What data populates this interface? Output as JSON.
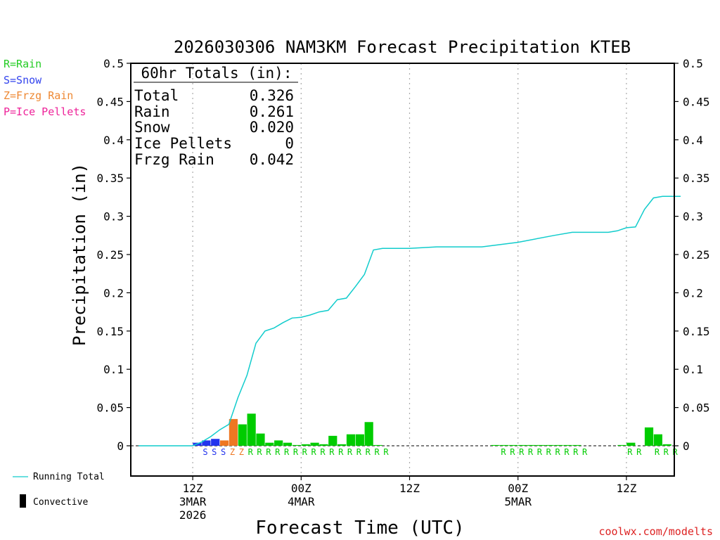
{
  "chart_data": {
    "type": "bar",
    "title": "2026030306 NAM3KM Forecast Precipitation KTEB",
    "xlabel": "Forecast Time (UTC)",
    "ylabel": "Precipitation (in)",
    "ylim": [
      -0.04,
      0.5
    ],
    "xlim": [
      0,
      60
    ],
    "y_ticks": [
      "0.5",
      "0.45",
      "0.4",
      "0.35",
      "0.3",
      "0.25",
      "0.2",
      "0.15",
      "0.1",
      "0.05",
      "0"
    ],
    "x_ticks": [
      {
        "hour": 6,
        "lines": [
          "12Z",
          "3MAR",
          "2026"
        ]
      },
      {
        "hour": 18,
        "lines": [
          "00Z",
          "4MAR"
        ]
      },
      {
        "hour": 30,
        "lines": [
          "12Z"
        ]
      },
      {
        "hour": 42,
        "lines": [
          "00Z",
          "5MAR"
        ]
      },
      {
        "hour": 54,
        "lines": [
          "12Z"
        ]
      }
    ],
    "type_legend": [
      {
        "label": "R=Rain",
        "color": "#22cc22"
      },
      {
        "label": "S=Snow",
        "color": "#3344ee"
      },
      {
        "label": "Z=Frzg Rain",
        "color": "#ee8833"
      },
      {
        "label": "P=Ice Pellets",
        "color": "#ee2299"
      }
    ],
    "totals_box": {
      "header": "60hr Totals (in):",
      "rows": [
        {
          "label": "Total",
          "value": "0.326"
        },
        {
          "label": "Rain",
          "value": "0.261"
        },
        {
          "label": "Snow",
          "value": "0.020"
        },
        {
          "label": "Ice Pellets",
          "value": "0"
        },
        {
          "label": "Frzg Rain",
          "value": "0.042"
        }
      ]
    },
    "series_legend": {
      "running_total": "Running Total",
      "convective": "Convective"
    },
    "colors": {
      "rain": "#00cc00",
      "snow": "#2233ee",
      "frzg": "#ee7722",
      "running": "#11cccc"
    },
    "bars": [
      {
        "h": 6.5,
        "v": 0.004,
        "type": "S"
      },
      {
        "h": 7.5,
        "v": 0.007,
        "type": "S"
      },
      {
        "h": 8.5,
        "v": 0.009,
        "type": "S"
      },
      {
        "h": 9.5,
        "v": 0.007,
        "type": "Z"
      },
      {
        "h": 10.5,
        "v": 0.035,
        "type": "Z"
      },
      {
        "h": 11.5,
        "v": 0.028,
        "type": "R"
      },
      {
        "h": 12.5,
        "v": 0.042,
        "type": "R"
      },
      {
        "h": 13.5,
        "v": 0.016,
        "type": "R"
      },
      {
        "h": 14.5,
        "v": 0.004,
        "type": "R"
      },
      {
        "h": 15.5,
        "v": 0.007,
        "type": "R"
      },
      {
        "h": 16.5,
        "v": 0.004,
        "type": "R"
      },
      {
        "h": 17.5,
        "v": 0.001,
        "type": "R"
      },
      {
        "h": 18.5,
        "v": 0.002,
        "type": "R"
      },
      {
        "h": 19.5,
        "v": 0.004,
        "type": "R"
      },
      {
        "h": 20.5,
        "v": 0.002,
        "type": "R"
      },
      {
        "h": 21.5,
        "v": 0.013,
        "type": "R"
      },
      {
        "h": 22.5,
        "v": 0.002,
        "type": "R"
      },
      {
        "h": 23.5,
        "v": 0.015,
        "type": "R"
      },
      {
        "h": 24.5,
        "v": 0.015,
        "type": "R"
      },
      {
        "h": 25.5,
        "v": 0.031,
        "type": "R"
      },
      {
        "h": 26.5,
        "v": 0.001,
        "type": "R"
      },
      {
        "h": 39.5,
        "v": 0.001,
        "type": "R"
      },
      {
        "h": 40.5,
        "v": 0.001,
        "type": "R"
      },
      {
        "h": 41.5,
        "v": 0.001,
        "type": "R"
      },
      {
        "h": 42.5,
        "v": 0.001,
        "type": "R"
      },
      {
        "h": 43.5,
        "v": 0.001,
        "type": "R"
      },
      {
        "h": 44.5,
        "v": 0.001,
        "type": "R"
      },
      {
        "h": 45.5,
        "v": 0.001,
        "type": "R"
      },
      {
        "h": 46.5,
        "v": 0.001,
        "type": "R"
      },
      {
        "h": 47.5,
        "v": 0.001,
        "type": "R"
      },
      {
        "h": 48.5,
        "v": 0.001,
        "type": "R"
      },
      {
        "h": 53.5,
        "v": 0.001,
        "type": "R"
      },
      {
        "h": 54.5,
        "v": 0.004,
        "type": "R"
      },
      {
        "h": 56.5,
        "v": 0.024,
        "type": "R"
      },
      {
        "h": 57.5,
        "v": 0.015,
        "type": "R"
      },
      {
        "h": 58.5,
        "v": 0.002,
        "type": "R"
      }
    ],
    "type_markers": [
      {
        "h": 7.0,
        "t": "S"
      },
      {
        "h": 8.0,
        "t": "S"
      },
      {
        "h": 9.0,
        "t": "S"
      },
      {
        "h": 10.0,
        "t": "Z"
      },
      {
        "h": 11.0,
        "t": "Z"
      },
      {
        "h": 12.0,
        "t": "R"
      },
      {
        "h": 13.0,
        "t": "R"
      },
      {
        "h": 14.0,
        "t": "R"
      },
      {
        "h": 15.0,
        "t": "R"
      },
      {
        "h": 16.0,
        "t": "R"
      },
      {
        "h": 17.0,
        "t": "R"
      },
      {
        "h": 18.0,
        "t": "R"
      },
      {
        "h": 19.0,
        "t": "R"
      },
      {
        "h": 20.0,
        "t": "R"
      },
      {
        "h": 21.0,
        "t": "R"
      },
      {
        "h": 22.0,
        "t": "R"
      },
      {
        "h": 23.0,
        "t": "R"
      },
      {
        "h": 24.0,
        "t": "R"
      },
      {
        "h": 25.0,
        "t": "R"
      },
      {
        "h": 26.0,
        "t": "R"
      },
      {
        "h": 27.0,
        "t": "R"
      },
      {
        "h": 40.0,
        "t": "R"
      },
      {
        "h": 41.0,
        "t": "R"
      },
      {
        "h": 42.0,
        "t": "R"
      },
      {
        "h": 43.0,
        "t": "R"
      },
      {
        "h": 44.0,
        "t": "R"
      },
      {
        "h": 45.0,
        "t": "R"
      },
      {
        "h": 46.0,
        "t": "R"
      },
      {
        "h": 47.0,
        "t": "R"
      },
      {
        "h": 48.0,
        "t": "R"
      },
      {
        "h": 49.0,
        "t": "R"
      },
      {
        "h": 54.0,
        "t": "R"
      },
      {
        "h": 55.0,
        "t": "R"
      },
      {
        "h": 57.0,
        "t": "R"
      },
      {
        "h": 58.0,
        "t": "R"
      },
      {
        "h": 59.0,
        "t": "R"
      }
    ],
    "running_total": [
      [
        0.0,
        0.0
      ],
      [
        6.0,
        0.0
      ],
      [
        7.0,
        0.005
      ],
      [
        8.0,
        0.012
      ],
      [
        9.0,
        0.021
      ],
      [
        10.0,
        0.028
      ],
      [
        11.0,
        0.063
      ],
      [
        12.0,
        0.092
      ],
      [
        13.0,
        0.134
      ],
      [
        14.0,
        0.15
      ],
      [
        15.0,
        0.154
      ],
      [
        16.0,
        0.161
      ],
      [
        17.0,
        0.167
      ],
      [
        18.0,
        0.168
      ],
      [
        19.0,
        0.171
      ],
      [
        20.0,
        0.175
      ],
      [
        21.0,
        0.177
      ],
      [
        22.0,
        0.191
      ],
      [
        23.0,
        0.193
      ],
      [
        24.0,
        0.208
      ],
      [
        25.0,
        0.224
      ],
      [
        26.0,
        0.256
      ],
      [
        27.0,
        0.258
      ],
      [
        30.0,
        0.258
      ],
      [
        33.0,
        0.26
      ],
      [
        38.0,
        0.26
      ],
      [
        42.0,
        0.266
      ],
      [
        46.0,
        0.275
      ],
      [
        48.0,
        0.279
      ],
      [
        52.0,
        0.279
      ],
      [
        53.0,
        0.281
      ],
      [
        54.0,
        0.285
      ],
      [
        55.0,
        0.286
      ],
      [
        56.0,
        0.309
      ],
      [
        57.0,
        0.324
      ],
      [
        58.0,
        0.326
      ],
      [
        60.0,
        0.326
      ]
    ],
    "credit": "coolwx.com/modelts"
  }
}
